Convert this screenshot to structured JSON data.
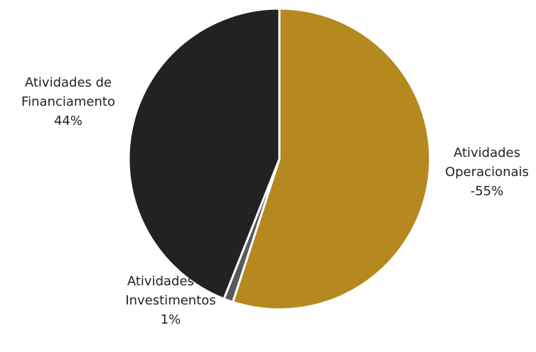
{
  "chart_data": {
    "type": "pie",
    "title": "",
    "slices": [
      {
        "name_lines": [
          "Atividades",
          "Operacionais"
        ],
        "value": 55,
        "label_percent": "-55%",
        "color": "#b5891f"
      },
      {
        "name_lines": [
          "Atividades de",
          "Investimentos"
        ],
        "value": 1,
        "label_percent": "1%",
        "color": "#595959"
      },
      {
        "name_lines": [
          "Atividades de",
          "Financiamento"
        ],
        "value": 44,
        "label_percent": "44%",
        "color": "#222222"
      }
    ],
    "start_angle_deg": 0,
    "direction": "clockwise",
    "legend": "none",
    "labels": "outside"
  }
}
